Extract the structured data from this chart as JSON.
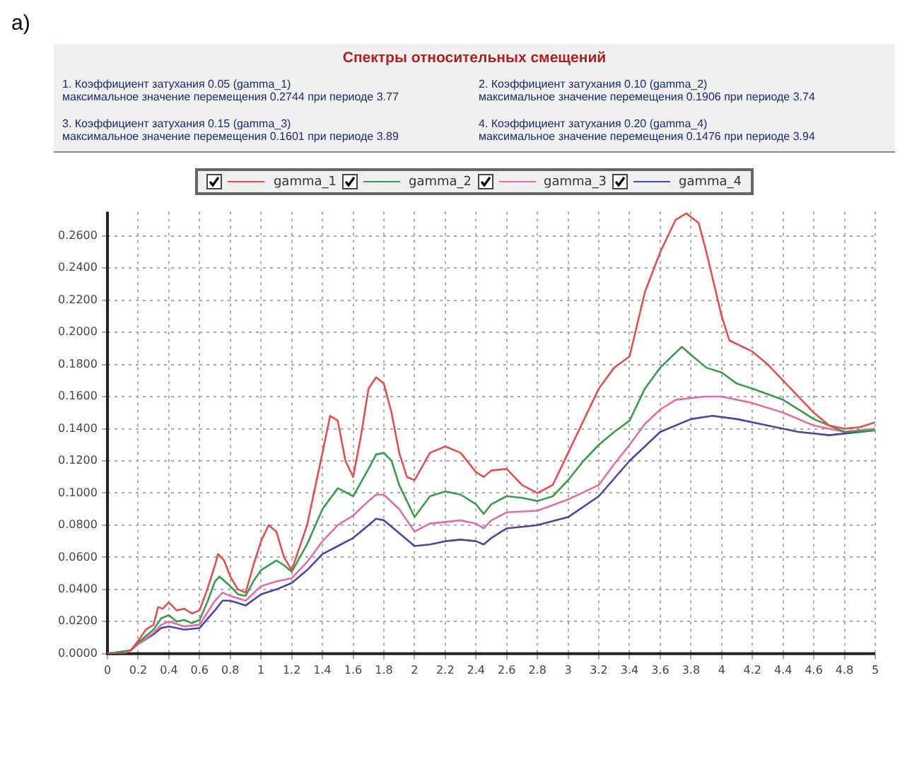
{
  "chart_data": {
    "type": "line",
    "title": "Спектры относительных смещений",
    "annotations": [
      "a)",
      "1. Коэффициент затухания  0.05 (gamma_1)\nмаксимальное значение перемещения 0.2744 при периоде 3.77",
      "2. Коэффициент затухания  0.10 (gamma_2)\nмаксимальное значение перемещения 0.1906 при периоде 3.74",
      "3. Коэффициент затухания  0.15 (gamma_3)\nмаксимальное значение перемещения 0.1601 при периоде 3.89",
      "4. Коэффициент затухания  0.20 (gamma_4)\nмаксимальное значение перемещения 0.1476 при периоде 3.94"
    ],
    "xlim": [
      0,
      5
    ],
    "xticks": [
      0,
      0.2,
      0.4,
      0.6,
      0.8,
      1,
      1.2,
      1.4,
      1.6,
      1.8,
      2,
      2.2,
      2.4,
      2.6,
      2.8,
      3,
      3.2,
      3.4,
      3.6,
      3.8,
      4,
      4.2,
      4.4,
      4.6,
      4.8,
      5
    ],
    "ylim": [
      0,
      0.275
    ],
    "yticks": [
      {
        "value": 0,
        "label": "0.0000"
      },
      {
        "value": 0.02,
        "label": "0.0200"
      },
      {
        "value": 0.04,
        "label": "0.0400"
      },
      {
        "value": 0.06,
        "label": "0.0600"
      },
      {
        "value": 0.08,
        "label": "0.0800"
      },
      {
        "value": 0.1,
        "label": "0.1000"
      },
      {
        "value": 0.12,
        "label": "0.1200"
      },
      {
        "value": 0.14,
        "label": "0.1400"
      },
      {
        "value": 0.16,
        "label": "0.1600"
      },
      {
        "value": 0.18,
        "label": "0.1800"
      },
      {
        "value": 0.2,
        "label": "0.2000"
      },
      {
        "value": 0.22,
        "label": "0.2200"
      },
      {
        "value": 0.24,
        "label": "0.2400"
      },
      {
        "value": 0.26,
        "label": "0.2600"
      }
    ],
    "grid": true,
    "legend": "top",
    "marker": "none",
    "line_style": "solid",
    "series": [
      {
        "name": "gamma_1",
        "color": "#e05050",
        "x": [
          0,
          0.1,
          0.15,
          0.2,
          0.25,
          0.3,
          0.33,
          0.36,
          0.4,
          0.45,
          0.5,
          0.55,
          0.6,
          0.65,
          0.7,
          0.72,
          0.76,
          0.8,
          0.85,
          0.9,
          0.95,
          1.0,
          1.05,
          1.1,
          1.15,
          1.2,
          1.3,
          1.4,
          1.45,
          1.5,
          1.55,
          1.6,
          1.65,
          1.7,
          1.75,
          1.8,
          1.85,
          1.9,
          1.95,
          2.0,
          2.1,
          2.2,
          2.3,
          2.4,
          2.45,
          2.5,
          2.6,
          2.7,
          2.8,
          2.9,
          3.0,
          3.1,
          3.2,
          3.3,
          3.4,
          3.5,
          3.6,
          3.7,
          3.77,
          3.85,
          3.9,
          4.0,
          4.05,
          4.2,
          4.3,
          4.4,
          4.6,
          4.7,
          4.8,
          4.9,
          5.0
        ],
        "values": [
          0,
          0,
          0.002,
          0.008,
          0.015,
          0.018,
          0.029,
          0.028,
          0.032,
          0.027,
          0.028,
          0.025,
          0.027,
          0.04,
          0.055,
          0.062,
          0.058,
          0.048,
          0.04,
          0.038,
          0.055,
          0.07,
          0.08,
          0.076,
          0.06,
          0.052,
          0.08,
          0.125,
          0.148,
          0.145,
          0.12,
          0.11,
          0.135,
          0.165,
          0.172,
          0.168,
          0.15,
          0.125,
          0.11,
          0.108,
          0.125,
          0.129,
          0.125,
          0.113,
          0.11,
          0.114,
          0.115,
          0.105,
          0.1,
          0.105,
          0.125,
          0.145,
          0.165,
          0.178,
          0.185,
          0.225,
          0.25,
          0.27,
          0.274,
          0.268,
          0.25,
          0.21,
          0.195,
          0.188,
          0.18,
          0.17,
          0.15,
          0.142,
          0.14,
          0.141,
          0.144
        ]
      },
      {
        "name": "gamma_2",
        "color": "#3c9a50",
        "x": [
          0,
          0.15,
          0.2,
          0.3,
          0.35,
          0.4,
          0.45,
          0.5,
          0.55,
          0.6,
          0.65,
          0.7,
          0.73,
          0.8,
          0.85,
          0.9,
          0.95,
          1.0,
          1.1,
          1.15,
          1.2,
          1.3,
          1.4,
          1.5,
          1.6,
          1.7,
          1.75,
          1.8,
          1.85,
          1.9,
          2.0,
          2.1,
          2.2,
          2.3,
          2.4,
          2.45,
          2.5,
          2.6,
          2.7,
          2.8,
          2.9,
          3.0,
          3.1,
          3.2,
          3.3,
          3.4,
          3.5,
          3.6,
          3.74,
          3.8,
          3.9,
          4.0,
          4.1,
          4.2,
          4.4,
          4.6,
          4.8,
          5.0
        ],
        "values": [
          0,
          0.002,
          0.007,
          0.015,
          0.022,
          0.024,
          0.02,
          0.021,
          0.019,
          0.021,
          0.032,
          0.045,
          0.048,
          0.042,
          0.037,
          0.036,
          0.045,
          0.052,
          0.058,
          0.055,
          0.051,
          0.068,
          0.09,
          0.103,
          0.098,
          0.115,
          0.124,
          0.125,
          0.12,
          0.105,
          0.085,
          0.098,
          0.101,
          0.099,
          0.093,
          0.087,
          0.093,
          0.098,
          0.097,
          0.095,
          0.098,
          0.108,
          0.12,
          0.13,
          0.138,
          0.145,
          0.165,
          0.178,
          0.191,
          0.186,
          0.178,
          0.175,
          0.168,
          0.165,
          0.158,
          0.146,
          0.138,
          0.139
        ]
      },
      {
        "name": "gamma_3",
        "color": "#e070a0",
        "x": [
          0,
          0.15,
          0.2,
          0.3,
          0.35,
          0.4,
          0.5,
          0.6,
          0.7,
          0.75,
          0.8,
          0.9,
          1.0,
          1.1,
          1.2,
          1.3,
          1.4,
          1.5,
          1.6,
          1.7,
          1.75,
          1.8,
          1.9,
          2.0,
          2.1,
          2.2,
          2.3,
          2.4,
          2.45,
          2.5,
          2.6,
          2.8,
          3.0,
          3.2,
          3.3,
          3.4,
          3.5,
          3.6,
          3.7,
          3.89,
          4.0,
          4.2,
          4.4,
          4.6,
          4.8,
          5.0
        ],
        "values": [
          0,
          0.002,
          0.006,
          0.013,
          0.018,
          0.02,
          0.017,
          0.018,
          0.033,
          0.038,
          0.036,
          0.033,
          0.042,
          0.045,
          0.047,
          0.057,
          0.07,
          0.08,
          0.086,
          0.095,
          0.099,
          0.099,
          0.09,
          0.076,
          0.081,
          0.082,
          0.083,
          0.081,
          0.078,
          0.083,
          0.088,
          0.089,
          0.096,
          0.105,
          0.118,
          0.13,
          0.143,
          0.152,
          0.158,
          0.16,
          0.16,
          0.156,
          0.15,
          0.142,
          0.138,
          0.14
        ]
      },
      {
        "name": "gamma_4",
        "color": "#4848a0",
        "x": [
          0,
          0.15,
          0.2,
          0.3,
          0.35,
          0.4,
          0.5,
          0.6,
          0.7,
          0.75,
          0.8,
          0.9,
          1.0,
          1.1,
          1.2,
          1.3,
          1.4,
          1.5,
          1.6,
          1.7,
          1.75,
          1.8,
          1.9,
          2.0,
          2.1,
          2.2,
          2.3,
          2.4,
          2.45,
          2.5,
          2.6,
          2.8,
          3.0,
          3.2,
          3.4,
          3.6,
          3.8,
          3.94,
          4.1,
          4.3,
          4.5,
          4.7,
          4.8,
          5.0
        ],
        "values": [
          0,
          0.002,
          0.006,
          0.012,
          0.016,
          0.017,
          0.015,
          0.016,
          0.027,
          0.033,
          0.033,
          0.03,
          0.037,
          0.04,
          0.044,
          0.052,
          0.062,
          0.067,
          0.072,
          0.08,
          0.084,
          0.083,
          0.075,
          0.067,
          0.068,
          0.07,
          0.071,
          0.07,
          0.068,
          0.072,
          0.078,
          0.08,
          0.085,
          0.098,
          0.12,
          0.138,
          0.146,
          0.148,
          0.146,
          0.142,
          0.138,
          0.136,
          0.137,
          0.139
        ]
      }
    ]
  }
}
